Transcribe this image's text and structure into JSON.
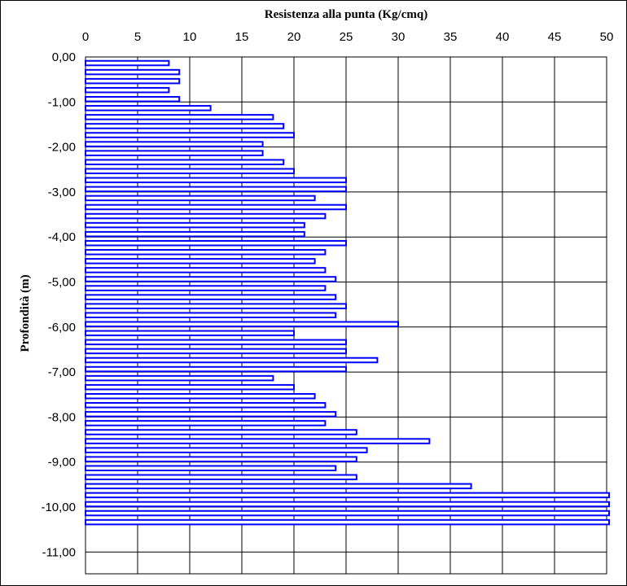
{
  "chart_data": {
    "type": "bar",
    "orientation": "horizontal",
    "title": "Resistenza alla punta (Kg/cmq)",
    "xlabel": "Resistenza alla punta (Kg/cmq)",
    "ylabel": "Profondità (m)",
    "xlim": [
      0,
      50
    ],
    "ylim": [
      -11.5,
      0.2
    ],
    "x_ticks": [
      "0",
      "5",
      "10",
      "15",
      "20",
      "25",
      "30",
      "35",
      "40",
      "45",
      "50"
    ],
    "y_ticks": [
      "0,00",
      "-1,00",
      "-2,00",
      "-3,00",
      "-4,00",
      "-5,00",
      "-6,00",
      "-7,00",
      "-8,00",
      "-9,00",
      "-10,00",
      "-11,00"
    ],
    "x_tick_values": [
      0,
      5,
      10,
      15,
      20,
      25,
      30,
      35,
      40,
      45,
      50
    ],
    "y_tick_values": [
      0,
      -1,
      -2,
      -3,
      -4,
      -5,
      -6,
      -7,
      -8,
      -9,
      -10,
      -11
    ],
    "x_axis_position": "top",
    "grid": true,
    "depth_step": 0.2,
    "series": [
      {
        "color": "#0000ff",
        "depths": [
          -0.2,
          -0.4,
          -0.6,
          -0.8,
          -1.0,
          -1.2,
          -1.4,
          -1.6,
          -1.8,
          -2.0,
          -2.2,
          -2.4,
          -2.6,
          -2.8,
          -3.0,
          -3.2,
          -3.4,
          -3.6,
          -3.8,
          -4.0,
          -4.2,
          -4.4,
          -4.6,
          -4.8,
          -5.0,
          -5.2,
          -5.4,
          -5.6,
          -5.8,
          -6.0,
          -6.2,
          -6.4,
          -6.6,
          -6.8,
          -7.0,
          -7.2,
          -7.4,
          -7.6,
          -7.8,
          -8.0,
          -8.2,
          -8.4,
          -8.6,
          -8.8,
          -9.0,
          -9.2,
          -9.4,
          -9.6,
          -9.8,
          -10.0,
          -10.2,
          -10.4
        ],
        "values": [
          8,
          9,
          9,
          8,
          9,
          12,
          18,
          19,
          20,
          17,
          17,
          19,
          20,
          25,
          25,
          22,
          25,
          23,
          21,
          21,
          25,
          23,
          22,
          23,
          24,
          23,
          24,
          25,
          24,
          30,
          20,
          25,
          25,
          28,
          25,
          18,
          20,
          22,
          23,
          24,
          23,
          26,
          33,
          27,
          26,
          24,
          26,
          37,
          50,
          50,
          50,
          50
        ]
      }
    ]
  }
}
